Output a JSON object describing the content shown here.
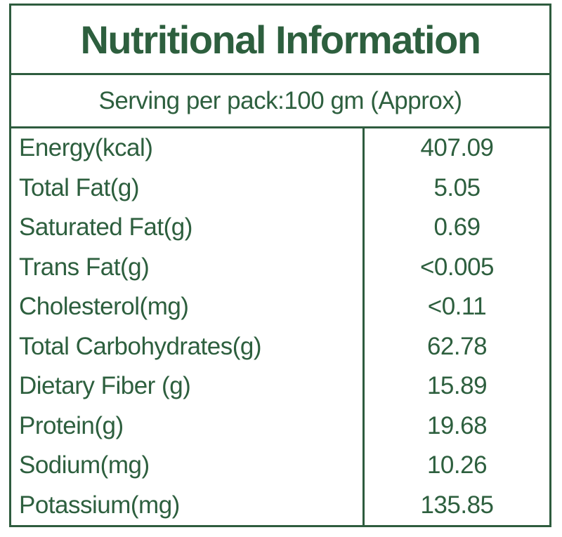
{
  "label": {
    "title": "Nutritional Information",
    "serving_text": "Serving per pack:100 gm (Approx)",
    "colors": {
      "text_green": "#2d5f3e",
      "border_green": "#2e5c3e",
      "background": "#ffffff"
    },
    "rows": [
      {
        "name": "Energy(kcal)",
        "value": "407.09"
      },
      {
        "name": "Total Fat(g)",
        "value": "5.05"
      },
      {
        "name": "Saturated Fat(g)",
        "value": "0.69"
      },
      {
        "name": "Trans Fat(g)",
        "value": "<0.005"
      },
      {
        "name": "Cholesterol(mg)",
        "value": "<0.11"
      },
      {
        "name": "Total Carbohydrates(g)",
        "value": "62.78"
      },
      {
        "name": "Dietary Fiber (g)",
        "value": "15.89"
      },
      {
        "name": "Protein(g)",
        "value": "19.68"
      },
      {
        "name": "Sodium(mg)",
        "value": "10.26"
      },
      {
        "name": "Potassium(mg)",
        "value": "135.85"
      }
    ]
  }
}
